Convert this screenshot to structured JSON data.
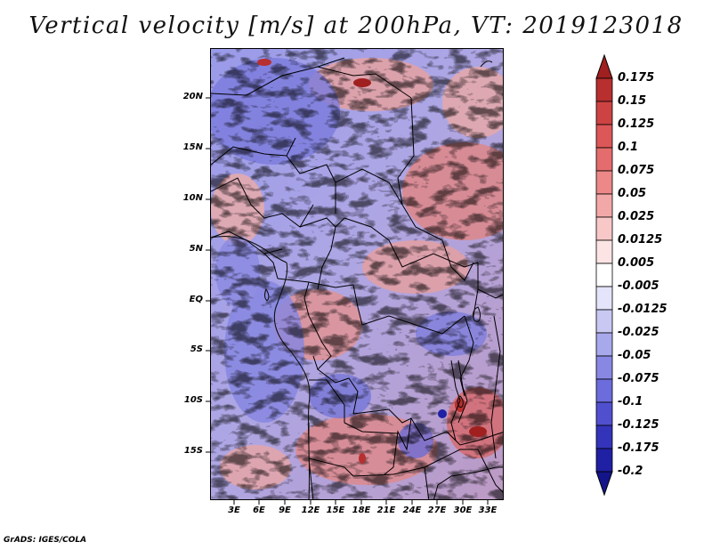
{
  "title": "Vertical velocity [m/s] at 200hPa, VT: 2019123018",
  "credit": "GrADS: IGES/COLA",
  "map": {
    "variable": "Vertical velocity",
    "units": "m/s",
    "level": "200hPa",
    "valid_time": "2019123018",
    "lon_labels": [
      "3E",
      "6E",
      "9E",
      "12E",
      "15E",
      "18E",
      "21E",
      "24E",
      "27E",
      "30E",
      "33E"
    ],
    "lat_labels": [
      "20N",
      "15N",
      "10N",
      "5N",
      "EQ",
      "5S",
      "10S",
      "15S"
    ]
  },
  "colorbar": {
    "labels": [
      "0.175",
      "0.15",
      "0.125",
      "0.1",
      "0.075",
      "0.05",
      "0.025",
      "0.0125",
      "0.005",
      "-0.005",
      "-0.0125",
      "-0.025",
      "-0.05",
      "-0.075",
      "-0.1",
      "-0.125",
      "-0.175",
      "-0.2"
    ],
    "colors": [
      "#a01f1f",
      "#b82f2f",
      "#cd4343",
      "#dc5757",
      "#e46c6c",
      "#ec8888",
      "#f3a8a8",
      "#f8c8c8",
      "#fce4e4",
      "#ffffff",
      "#e4e4fa",
      "#c8c8f3",
      "#a8a8ec",
      "#8888e4",
      "#6c6cdc",
      "#5050cf",
      "#3434bb",
      "#2020a4",
      "#14148a"
    ]
  }
}
